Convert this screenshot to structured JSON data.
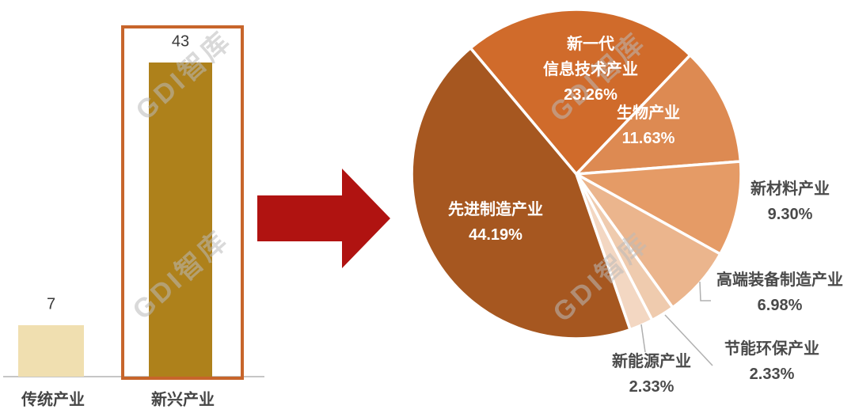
{
  "watermark": {
    "text": "GDI智库"
  },
  "colors": {
    "arrow": "#B01311",
    "highlight_box": "#C7652B",
    "axis": "#C6C6C6",
    "leader_line": "#B0B0B0",
    "inside_label": "#FFFFFF",
    "outside_label": "#4A4A4A"
  },
  "chart_data": [
    {
      "type": "bar",
      "title": "",
      "categories": [
        "传统产业",
        "新兴产业"
      ],
      "values": [
        7,
        43
      ],
      "value_labels": [
        "7",
        "43"
      ],
      "colors": [
        "#F0DFB0",
        "#AE811B"
      ],
      "ylim": [
        0,
        43
      ],
      "highlighted_category": "新兴产业",
      "grid": "off"
    },
    {
      "type": "pie",
      "start_angle_deg": -40,
      "clockwise": true,
      "slices": [
        {
          "name": "新一代信息技术产业",
          "name_lines": [
            "新一代",
            "信息技术产业"
          ],
          "value": 23.26,
          "value_label": "23.26%",
          "color": "#D06B2B",
          "label_placement": "inside"
        },
        {
          "name": "生物产业",
          "name_lines": [
            "生物产业"
          ],
          "value": 11.63,
          "value_label": "11.63%",
          "color": "#DD8A52",
          "label_placement": "inside"
        },
        {
          "name": "新材料产业",
          "name_lines": [
            "新材料产业"
          ],
          "value": 9.3,
          "value_label": "9.30%",
          "color": "#E59B66",
          "label_placement": "outside"
        },
        {
          "name": "高端装备制造产业",
          "name_lines": [
            "高端装备制造产业"
          ],
          "value": 6.98,
          "value_label": "6.98%",
          "color": "#EBB58D",
          "label_placement": "outside"
        },
        {
          "name": "节能环保产业",
          "name_lines": [
            "节能环保产业"
          ],
          "value": 2.33,
          "value_label": "2.33%",
          "color": "#EFCBAE",
          "label_placement": "outside"
        },
        {
          "name": "新能源产业",
          "name_lines": [
            "新能源产业"
          ],
          "value": 2.33,
          "value_label": "2.33%",
          "color": "#F3D7C2",
          "label_placement": "outside"
        },
        {
          "name": "先进制造产业",
          "name_lines": [
            "先进制造产业"
          ],
          "value": 44.19,
          "value_label": "44.19%",
          "color": "#A65720",
          "label_placement": "inside"
        }
      ],
      "legend": "none"
    }
  ]
}
